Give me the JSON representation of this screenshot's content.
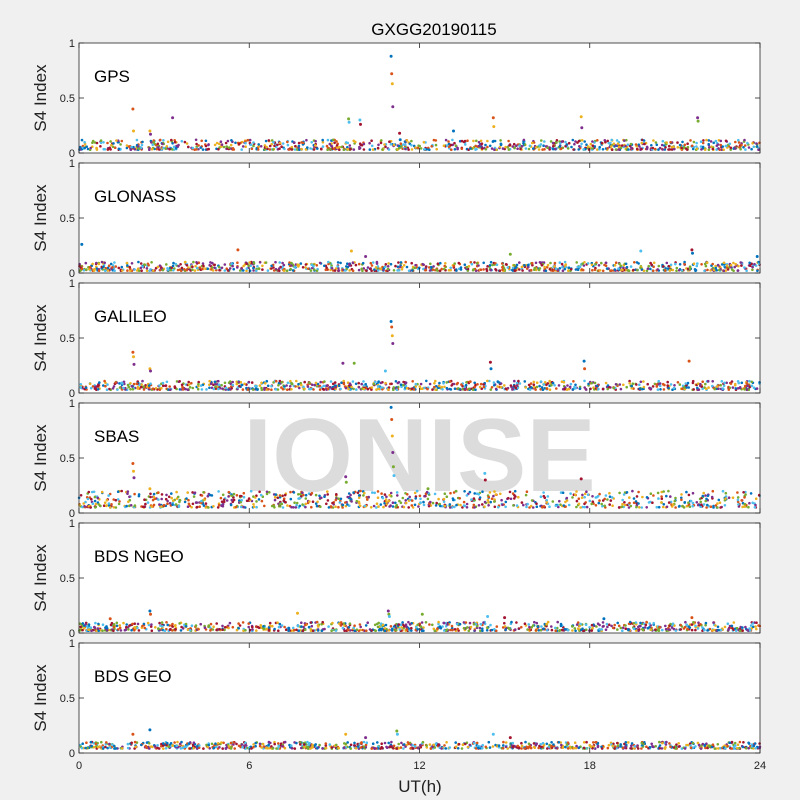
{
  "chart_data": {
    "type": "scatter",
    "title": "GXGG20190115",
    "xlabel": "UT(h)",
    "ylabel": "S4 Index",
    "xlim": [
      0,
      24
    ],
    "ylim": [
      0,
      1
    ],
    "xticks": [
      0,
      6,
      12,
      18,
      24
    ],
    "yticks": [
      0,
      0.5,
      1
    ],
    "ytick_labels": [
      "0",
      "0.5",
      "1"
    ],
    "watermark": "IONISE",
    "colors": [
      "#0072BD",
      "#D95319",
      "#EDB120",
      "#7E2F8E",
      "#77AC30",
      "#4DBEEE",
      "#A2142F"
    ],
    "panels": [
      {
        "name": "GPS",
        "baseline": [
          0.03,
          0.12
        ],
        "spikes": [
          {
            "x": 11.0,
            "values": [
              0.88,
              0.72,
              0.63,
              0.42
            ]
          },
          {
            "x": 1.9,
            "values": [
              0.4,
              0.2
            ]
          },
          {
            "x": 2.5,
            "values": [
              0.2,
              0.17
            ]
          },
          {
            "x": 3.3,
            "values": [
              0.32
            ]
          },
          {
            "x": 9.5,
            "values": [
              0.31,
              0.28
            ]
          },
          {
            "x": 9.9,
            "values": [
              0.3,
              0.26
            ]
          },
          {
            "x": 11.3,
            "values": [
              0.18,
              0.12
            ]
          },
          {
            "x": 13.2,
            "values": [
              0.2
            ]
          },
          {
            "x": 14.6,
            "values": [
              0.32,
              0.24
            ]
          },
          {
            "x": 17.7,
            "values": [
              0.33,
              0.23
            ]
          },
          {
            "x": 21.8,
            "values": [
              0.32,
              0.29
            ]
          }
        ]
      },
      {
        "name": "GLONASS",
        "baseline": [
          0.02,
          0.1
        ],
        "spikes": [
          {
            "x": 0.1,
            "values": [
              0.26
            ]
          },
          {
            "x": 5.6,
            "values": [
              0.21
            ]
          },
          {
            "x": 9.6,
            "values": [
              0.2
            ]
          },
          {
            "x": 10.1,
            "values": [
              0.15
            ]
          },
          {
            "x": 15.2,
            "values": [
              0.17
            ]
          },
          {
            "x": 19.8,
            "values": [
              0.2
            ]
          },
          {
            "x": 21.6,
            "values": [
              0.21,
              0.18
            ]
          },
          {
            "x": 23.9,
            "values": [
              0.15
            ]
          }
        ]
      },
      {
        "name": "GALILEO",
        "baseline": [
          0.03,
          0.11
        ],
        "spikes": [
          {
            "x": 11.0,
            "values": [
              0.65,
              0.6,
              0.52,
              0.45
            ]
          },
          {
            "x": 1.9,
            "values": [
              0.37,
              0.33,
              0.26
            ]
          },
          {
            "x": 2.5,
            "values": [
              0.22,
              0.2
            ]
          },
          {
            "x": 9.3,
            "values": [
              0.27
            ]
          },
          {
            "x": 9.7,
            "values": [
              0.27
            ]
          },
          {
            "x": 10.8,
            "values": [
              0.2
            ]
          },
          {
            "x": 14.5,
            "values": [
              0.28,
              0.22
            ]
          },
          {
            "x": 17.8,
            "values": [
              0.29,
              0.22
            ]
          },
          {
            "x": 21.5,
            "values": [
              0.29
            ]
          }
        ]
      },
      {
        "name": "SBAS",
        "baseline": [
          0.05,
          0.2
        ],
        "spikes": [
          {
            "x": 11.0,
            "values": [
              0.96,
              0.85,
              0.7,
              0.55,
              0.42,
              0.34
            ]
          },
          {
            "x": 1.9,
            "values": [
              0.45,
              0.38,
              0.32
            ]
          },
          {
            "x": 2.5,
            "values": [
              0.22
            ]
          },
          {
            "x": 9.4,
            "values": [
              0.33,
              0.28
            ]
          },
          {
            "x": 12.3,
            "values": [
              0.22
            ]
          },
          {
            "x": 14.3,
            "values": [
              0.36,
              0.3
            ]
          },
          {
            "x": 17.7,
            "values": [
              0.31
            ]
          }
        ]
      },
      {
        "name": "BDS NGEO",
        "baseline": [
          0.02,
          0.1
        ],
        "spikes": [
          {
            "x": 2.5,
            "values": [
              0.2,
              0.17
            ]
          },
          {
            "x": 1.1,
            "values": [
              0.13
            ]
          },
          {
            "x": 7.7,
            "values": [
              0.18
            ]
          },
          {
            "x": 10.9,
            "values": [
              0.2,
              0.17,
              0.15
            ]
          },
          {
            "x": 12.1,
            "values": [
              0.17
            ]
          },
          {
            "x": 14.4,
            "values": [
              0.15
            ]
          },
          {
            "x": 15.0,
            "values": [
              0.14
            ]
          },
          {
            "x": 18.5,
            "values": [
              0.13
            ]
          },
          {
            "x": 21.6,
            "values": [
              0.14
            ]
          }
        ]
      },
      {
        "name": "BDS GEO",
        "baseline": [
          0.04,
          0.1
        ],
        "spikes": [
          {
            "x": 2.5,
            "values": [
              0.21
            ]
          },
          {
            "x": 1.9,
            "values": [
              0.17
            ]
          },
          {
            "x": 9.4,
            "values": [
              0.17
            ]
          },
          {
            "x": 10.1,
            "values": [
              0.14
            ]
          },
          {
            "x": 11.2,
            "values": [
              0.2,
              0.17
            ]
          },
          {
            "x": 14.6,
            "values": [
              0.17
            ]
          },
          {
            "x": 15.2,
            "values": [
              0.14
            ]
          }
        ]
      }
    ]
  }
}
